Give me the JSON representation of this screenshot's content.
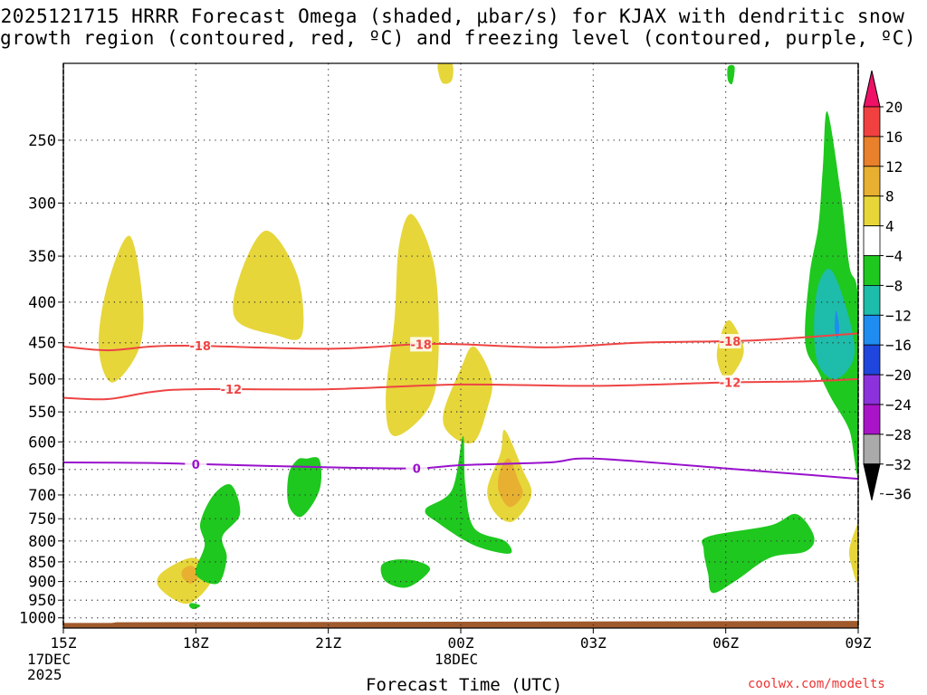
{
  "title_line1": "2025121715 HRRR Forecast Omega (shaded, μbar/s) for KJAX with dendritic snow",
  "title_line2": "growth region (contoured, red, ºC) and freezing level (contoured, purple, ºC)",
  "xlabel": "Forecast Time (UTC)",
  "credit": "coolwx.com/modelts",
  "start_date": [
    "17DEC",
    "2025"
  ],
  "mid_date": "18DEC",
  "chart_data": {
    "type": "heatmap",
    "y_ticks": [
      250,
      300,
      350,
      400,
      450,
      500,
      550,
      600,
      650,
      700,
      750,
      800,
      850,
      900,
      950,
      1000
    ],
    "ylim": [
      1030,
      200
    ],
    "x_ticks": [
      {
        "label": "15Z",
        "hour": 0
      },
      {
        "label": "18Z",
        "hour": 3
      },
      {
        "label": "21Z",
        "hour": 6
      },
      {
        "label": "00Z",
        "hour": 9
      },
      {
        "label": "03Z",
        "hour": 12
      },
      {
        "label": "06Z",
        "hour": 15
      },
      {
        "label": "09Z",
        "hour": 18
      }
    ],
    "xlim": [
      0,
      18
    ],
    "colorbar": {
      "labels": [
        "20",
        "16",
        "12",
        "8",
        "4",
        "−4",
        "−8",
        "−12",
        "−16",
        "−20",
        "−24",
        "−28",
        "−32",
        "−36"
      ],
      "colors": [
        "#ee1166",
        "#f04040",
        "#e8802c",
        "#e8b030",
        "#e6d63a",
        "#ffffff",
        "#1ec81e",
        "#1ebcaa",
        "#1e8cf0",
        "#1e46dc",
        "#8c32dc",
        "#aa14c8",
        "#aaaaaa",
        "#000000"
      ]
    },
    "contours": [
      {
        "name": "dgz_-18",
        "label": "-18",
        "color": "#ee4444",
        "points": [
          [
            0,
            455
          ],
          [
            1,
            460
          ],
          [
            2,
            455
          ],
          [
            3,
            454
          ],
          [
            6,
            458
          ],
          [
            8,
            452
          ],
          [
            9,
            452
          ],
          [
            11,
            456
          ],
          [
            13,
            450
          ],
          [
            15,
            448
          ],
          [
            16,
            446
          ],
          [
            18,
            438
          ]
        ]
      },
      {
        "name": "dgz_-12",
        "label": "-12",
        "color": "#ee4444",
        "points": [
          [
            0,
            528
          ],
          [
            1,
            530
          ],
          [
            2,
            519
          ],
          [
            3,
            515
          ],
          [
            6,
            515
          ],
          [
            9,
            508
          ],
          [
            12,
            510
          ],
          [
            15,
            505
          ],
          [
            17,
            503
          ],
          [
            18,
            500
          ]
        ]
      },
      {
        "name": "freezing_0",
        "label": "0",
        "color": "#9911cc",
        "points": [
          [
            0,
            637
          ],
          [
            2,
            638
          ],
          [
            3,
            640
          ],
          [
            6,
            646
          ],
          [
            8,
            648
          ],
          [
            9,
            642
          ],
          [
            11,
            637
          ],
          [
            12,
            630
          ],
          [
            15,
            648
          ],
          [
            18,
            668
          ]
        ]
      }
    ],
    "contour_labels": [
      {
        "text": "-18",
        "hour": 3.1,
        "level": 454,
        "color": "#ee4444"
      },
      {
        "text": "-18",
        "hour": 8.1,
        "level": 452,
        "color": "#ee4444"
      },
      {
        "text": "-18",
        "hour": 15.1,
        "level": 448,
        "color": "#ee4444"
      },
      {
        "text": "-12",
        "hour": 3.8,
        "level": 515,
        "color": "#ee4444"
      },
      {
        "text": "-12",
        "hour": 15.1,
        "level": 505,
        "color": "#ee4444"
      },
      {
        "text": "0",
        "hour": 3.0,
        "level": 640,
        "color": "#9911cc"
      },
      {
        "text": "0",
        "hour": 8.0,
        "level": 648,
        "color": "#9911cc"
      }
    ],
    "regions": [
      {
        "name": "rise-1",
        "color": "#e6d63a",
        "points": [
          [
            1.5,
            330
          ],
          [
            1.8,
            400
          ],
          [
            1.7,
            460
          ],
          [
            1.1,
            505
          ],
          [
            0.8,
            455
          ],
          [
            1.0,
            380
          ]
        ]
      },
      {
        "name": "rise-2",
        "color": "#e6d63a",
        "points": [
          [
            4.6,
            325
          ],
          [
            5.3,
            370
          ],
          [
            5.4,
            440
          ],
          [
            4.8,
            440
          ],
          [
            3.9,
            420
          ],
          [
            4.0,
            370
          ]
        ]
      },
      {
        "name": "rise-3",
        "color": "#e6d63a",
        "points": [
          [
            7.9,
            310
          ],
          [
            8.4,
            360
          ],
          [
            8.5,
            460
          ],
          [
            8.3,
            540
          ],
          [
            7.5,
            590
          ],
          [
            7.3,
            530
          ],
          [
            7.5,
            420
          ],
          [
            7.6,
            340
          ]
        ]
      },
      {
        "name": "rise-4",
        "color": "#e6d63a",
        "points": [
          [
            8.6,
            555
          ],
          [
            8.8,
            590
          ],
          [
            9.3,
            600
          ],
          [
            9.6,
            545
          ],
          [
            9.7,
            500
          ],
          [
            9.3,
            455
          ],
          [
            9.0,
            485
          ]
        ]
      },
      {
        "name": "rise-5",
        "color": "#e6d63a",
        "points": [
          [
            2.9,
            840
          ],
          [
            3.3,
            870
          ],
          [
            3.3,
            910
          ],
          [
            2.8,
            960
          ],
          [
            2.2,
            920
          ],
          [
            2.2,
            880
          ]
        ]
      },
      {
        "name": "rise-6",
        "color": "#e6d63a",
        "points": [
          [
            10.0,
            580
          ],
          [
            10.4,
            650
          ],
          [
            10.6,
            700
          ],
          [
            10.2,
            755
          ],
          [
            9.8,
            740
          ],
          [
            9.6,
            690
          ],
          [
            9.9,
            620
          ]
        ]
      },
      {
        "name": "rise-7",
        "color": "#e6d63a",
        "points": [
          [
            15.1,
            422
          ],
          [
            15.4,
            455
          ],
          [
            15.3,
            480
          ],
          [
            15.0,
            500
          ],
          [
            14.8,
            470
          ],
          [
            14.9,
            438
          ]
        ]
      },
      {
        "name": "rise-8",
        "color": "#e6d63a",
        "points": [
          [
            17.95,
            770
          ],
          [
            18,
            770
          ],
          [
            18,
            900
          ],
          [
            17.85,
            860
          ],
          [
            17.8,
            820
          ]
        ]
      },
      {
        "name": "rise-9",
        "color": "#e6d63a",
        "points": [
          [
            8.5,
            200
          ],
          [
            8.8,
            200
          ],
          [
            8.8,
            210
          ],
          [
            8.6,
            212
          ],
          [
            8.5,
            206
          ]
        ]
      },
      {
        "name": "rise-core-1",
        "color": "#e8b030",
        "points": [
          [
            2.9,
            860
          ],
          [
            3.1,
            880
          ],
          [
            2.9,
            905
          ],
          [
            2.7,
            890
          ],
          [
            2.7,
            870
          ]
        ]
      },
      {
        "name": "rise-core-2",
        "color": "#e8b030",
        "points": [
          [
            10.1,
            630
          ],
          [
            10.3,
            670
          ],
          [
            10.4,
            700
          ],
          [
            10.1,
            725
          ],
          [
            9.85,
            690
          ],
          [
            9.9,
            650
          ]
        ]
      },
      {
        "name": "sink-1",
        "color": "#1ec81e",
        "points": [
          [
            5.5,
            630
          ],
          [
            5.8,
            632
          ],
          [
            5.8,
            690
          ],
          [
            5.4,
            745
          ],
          [
            5.1,
            720
          ],
          [
            5.1,
            660
          ],
          [
            5.3,
            632
          ]
        ]
      },
      {
        "name": "sink-2",
        "color": "#1ec81e",
        "points": [
          [
            3.8,
            680
          ],
          [
            4.0,
            740
          ],
          [
            3.6,
            790
          ],
          [
            3.7,
            840
          ],
          [
            3.5,
            905
          ],
          [
            3.0,
            880
          ],
          [
            3.2,
            810
          ],
          [
            3.1,
            760
          ],
          [
            3.4,
            700
          ]
        ]
      },
      {
        "name": "sink-3",
        "color": "#1ec81e",
        "points": [
          [
            8.0,
            848
          ],
          [
            8.3,
            870
          ],
          [
            7.8,
            915
          ],
          [
            7.3,
            900
          ],
          [
            7.2,
            860
          ],
          [
            7.5,
            845
          ]
        ]
      },
      {
        "name": "sink-4",
        "color": "#1ec81e",
        "points": [
          [
            9.05,
            590
          ],
          [
            9.1,
            680
          ],
          [
            9.3,
            770
          ],
          [
            10.0,
            800
          ],
          [
            10.1,
            830
          ],
          [
            9.3,
            810
          ],
          [
            8.5,
            760
          ],
          [
            8.2,
            730
          ],
          [
            8.8,
            690
          ]
        ]
      },
      {
        "name": "sink-5",
        "color": "#1ec81e",
        "points": [
          [
            14.6,
            790
          ],
          [
            16.0,
            765
          ],
          [
            16.6,
            740
          ],
          [
            17.0,
            790
          ],
          [
            16.8,
            825
          ],
          [
            16.0,
            840
          ],
          [
            15.2,
            900
          ],
          [
            14.7,
            930
          ],
          [
            14.6,
            880
          ],
          [
            14.5,
            820
          ]
        ]
      },
      {
        "name": "sink-6",
        "color": "#1ec81e",
        "points": [
          [
            17.3,
            230
          ],
          [
            17.6,
            290
          ],
          [
            17.8,
            360
          ],
          [
            18,
            400
          ],
          [
            18,
            650
          ],
          [
            17.8,
            580
          ],
          [
            17.4,
            530
          ],
          [
            17.1,
            490
          ],
          [
            16.8,
            450
          ],
          [
            16.9,
            370
          ],
          [
            17.1,
            320
          ],
          [
            17.2,
            270
          ]
        ]
      },
      {
        "name": "sink-7",
        "color": "#1ebcaa",
        "points": [
          [
            17.4,
            365
          ],
          [
            17.8,
            420
          ],
          [
            17.9,
            470
          ],
          [
            17.5,
            500
          ],
          [
            17.1,
            480
          ],
          [
            17.0,
            430
          ],
          [
            17.1,
            380
          ]
        ]
      },
      {
        "name": "sink-8",
        "color": "#1ec81e",
        "points": [
          [
            2.9,
            958
          ],
          [
            3.1,
            965
          ],
          [
            2.95,
            975
          ],
          [
            2.85,
            966
          ]
        ]
      },
      {
        "name": "sink-9",
        "color": "#1ec81e",
        "points": [
          [
            15.05,
            202
          ],
          [
            15.2,
            202
          ],
          [
            15.15,
            212
          ],
          [
            15.05,
            210
          ]
        ]
      },
      {
        "name": "sink-core",
        "color": "#1e8cf0",
        "points": [
          [
            17.5,
            410
          ],
          [
            17.57,
            430
          ],
          [
            17.53,
            445
          ],
          [
            17.47,
            432
          ]
        ]
      }
    ],
    "ground": {
      "color": "#a05a2c",
      "level": 1030,
      "points": [
        [
          0,
          1015
        ],
        [
          1.1,
          1015
        ],
        [
          1.2,
          1013
        ],
        [
          18,
          1009
        ]
      ]
    }
  }
}
